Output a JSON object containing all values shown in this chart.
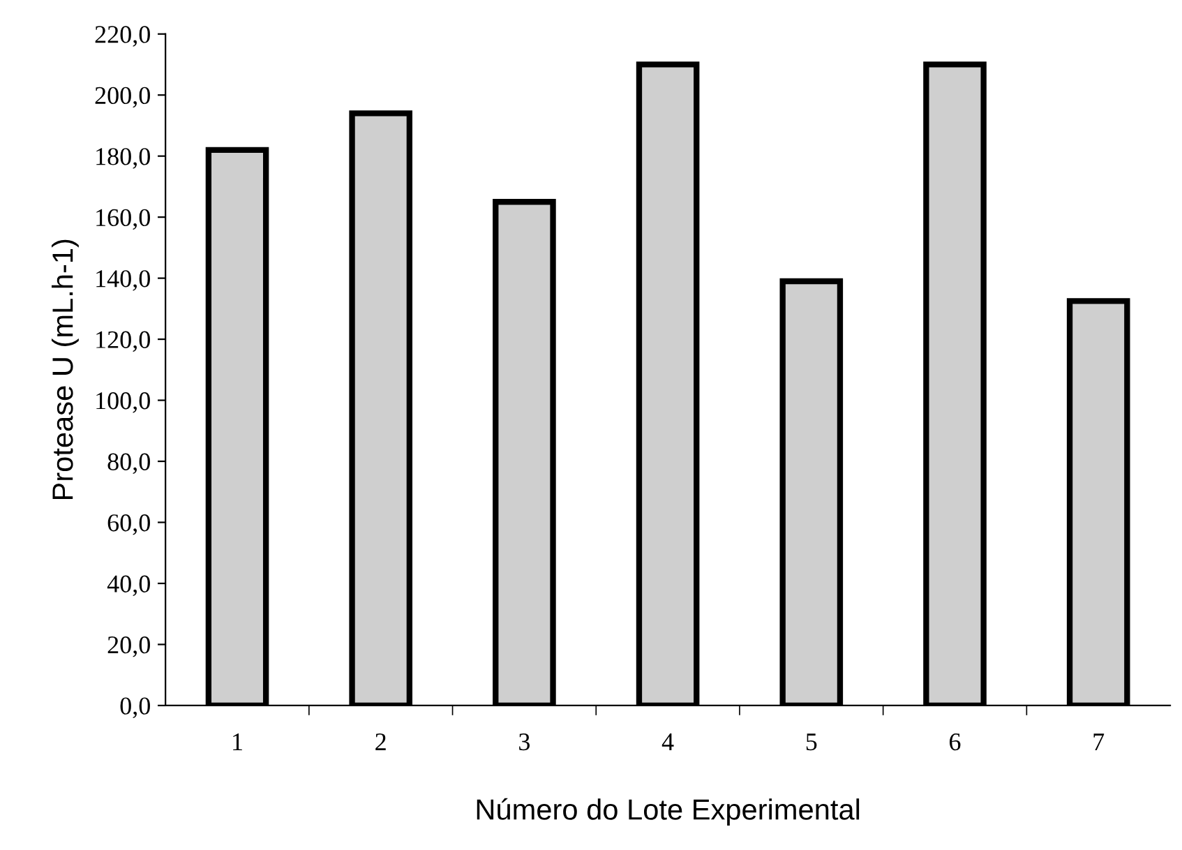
{
  "chart_data": {
    "type": "bar",
    "xlabel": "Número do Lote Experimental",
    "ylabel": "Protease U (mL.h-1)",
    "categories": [
      "1",
      "2",
      "3",
      "4",
      "5",
      "6",
      "7"
    ],
    "values": [
      182,
      194,
      165,
      210,
      139,
      210,
      132.5
    ],
    "color": "#cfcfcf",
    "ylim": [
      0,
      220
    ],
    "yticks": [
      {
        "value": 0,
        "label": "0,0"
      },
      {
        "value": 20,
        "label": "20,0"
      },
      {
        "value": 40,
        "label": "40,0"
      },
      {
        "value": 60,
        "label": "60,0"
      },
      {
        "value": 80,
        "label": "80,0"
      },
      {
        "value": 100,
        "label": "100,0"
      },
      {
        "value": 120,
        "label": "120,0"
      },
      {
        "value": 140,
        "label": "140,0"
      },
      {
        "value": 160,
        "label": "160,0"
      },
      {
        "value": 180,
        "label": "180,0"
      },
      {
        "value": 200,
        "label": "200,0"
      },
      {
        "value": 220,
        "label": "220,0"
      }
    ],
    "grid": false
  }
}
